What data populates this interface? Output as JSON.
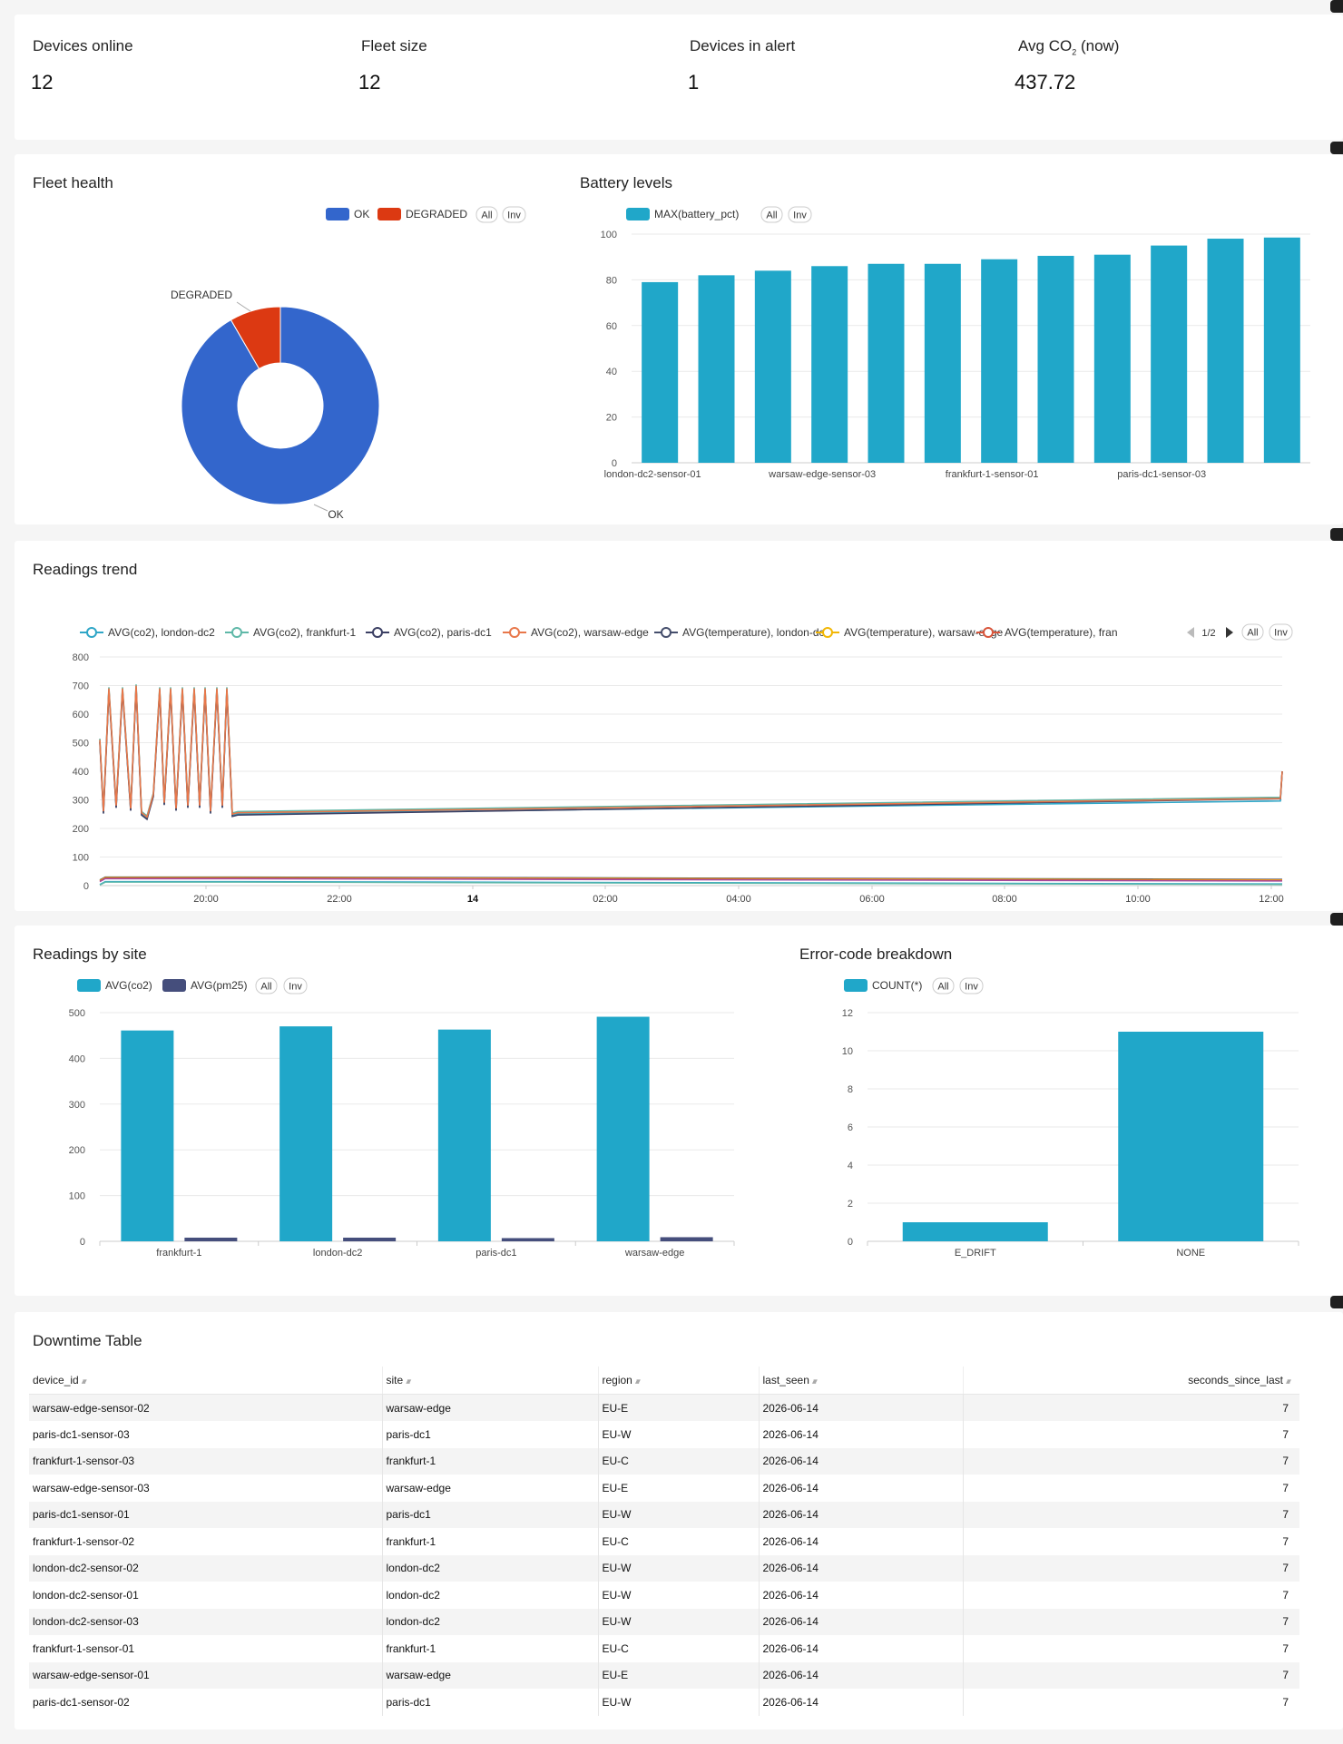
{
  "metrics": [
    {
      "label": "Devices online",
      "value": "12"
    },
    {
      "label": "Fleet size",
      "value": "12"
    },
    {
      "label": "Devices in alert",
      "value": "1"
    },
    {
      "label_main": "Avg CO",
      "label_sub": "2",
      "label_tail": " (now)",
      "value": "437.72"
    }
  ],
  "fleet_health": {
    "title": "Fleet health",
    "legend_all": "All",
    "legend_inv": "Inv"
  },
  "battery": {
    "title": "Battery levels",
    "legend_all": "All",
    "legend_inv": "Inv"
  },
  "trend": {
    "title": "Readings trend",
    "legend_page": "1/2",
    "legend_all": "All",
    "legend_inv": "Inv"
  },
  "by_site": {
    "title": "Readings by site",
    "legend_all": "All",
    "legend_inv": "Inv"
  },
  "errors": {
    "title": "Error-code breakdown",
    "legend_all": "All",
    "legend_inv": "Inv"
  },
  "colors": {
    "ok": "#3366cc",
    "degraded": "#dc3912",
    "bar": "#20a7c9",
    "bar_dark": "#454e7c"
  },
  "chart_data": [
    {
      "id": "fleet_health",
      "type": "pie",
      "labels": [
        "OK",
        "DEGRADED"
      ],
      "values": [
        11,
        1
      ],
      "legend": [
        "OK",
        "DEGRADED"
      ]
    },
    {
      "id": "battery",
      "type": "bar",
      "series": [
        {
          "name": "MAX(battery_pct)",
          "values": [
            79,
            82,
            84,
            86,
            87,
            87,
            89,
            90.5,
            91,
            95,
            98,
            98.5
          ]
        }
      ],
      "categories": [
        "london-dc2-sensor-01",
        "",
        "",
        "warsaw-edge-sensor-03",
        "",
        "",
        "frankfurt-1-sensor-01",
        "",
        "",
        "paris-dc1-sensor-03",
        "",
        ""
      ],
      "ylim": [
        0,
        100
      ],
      "yticks": [
        0,
        20,
        40,
        60,
        80,
        100
      ]
    },
    {
      "id": "trend",
      "type": "line",
      "legend": [
        "AVG(co2), london-dc2",
        "AVG(co2), frankfurt-1",
        "AVG(co2), paris-dc1",
        "AVG(co2), warsaw-edge",
        "AVG(temperature), london-dc2",
        "AVG(temperature), warsaw-edge",
        "AVG(temperature), fran"
      ],
      "legend_colors": [
        "#2fa6c7",
        "#5fb8a8",
        "#3b3f63",
        "#e8774a",
        "#454e6c",
        "#f2b705",
        "#d8553b"
      ],
      "xticks": [
        "20:00",
        "22:00",
        "14",
        "02:00",
        "04:00",
        "06:00",
        "08:00",
        "10:00",
        "12:00"
      ],
      "ylim": [
        0,
        800
      ],
      "yticks": [
        0,
        100,
        200,
        300,
        400,
        500,
        600,
        700,
        800
      ]
    },
    {
      "id": "by_site",
      "type": "bar",
      "categories": [
        "frankfurt-1",
        "london-dc2",
        "paris-dc1",
        "warsaw-edge"
      ],
      "series": [
        {
          "name": "AVG(co2)",
          "values": [
            461,
            470,
            463,
            491
          ]
        },
        {
          "name": "AVG(pm25)",
          "values": [
            8,
            8,
            7,
            9
          ]
        }
      ],
      "ylim": [
        0,
        500
      ],
      "yticks": [
        0,
        100,
        200,
        300,
        400,
        500
      ]
    },
    {
      "id": "errors",
      "type": "bar",
      "categories": [
        "E_DRIFT",
        "NONE"
      ],
      "series": [
        {
          "name": "COUNT(*)",
          "values": [
            1,
            11
          ]
        }
      ],
      "ylim": [
        0,
        12
      ],
      "yticks": [
        0,
        2,
        4,
        6,
        8,
        10,
        12
      ]
    }
  ],
  "downtime": {
    "title": "Downtime Table",
    "columns": [
      "device_id",
      "site",
      "region",
      "last_seen",
      "seconds_since_last"
    ],
    "rows": [
      [
        "warsaw-edge-sensor-02",
        "warsaw-edge",
        "EU-E",
        "2026-06-14",
        "7"
      ],
      [
        "paris-dc1-sensor-03",
        "paris-dc1",
        "EU-W",
        "2026-06-14",
        "7"
      ],
      [
        "frankfurt-1-sensor-03",
        "frankfurt-1",
        "EU-C",
        "2026-06-14",
        "7"
      ],
      [
        "warsaw-edge-sensor-03",
        "warsaw-edge",
        "EU-E",
        "2026-06-14",
        "7"
      ],
      [
        "paris-dc1-sensor-01",
        "paris-dc1",
        "EU-W",
        "2026-06-14",
        "7"
      ],
      [
        "frankfurt-1-sensor-02",
        "frankfurt-1",
        "EU-C",
        "2026-06-14",
        "7"
      ],
      [
        "london-dc2-sensor-02",
        "london-dc2",
        "EU-W",
        "2026-06-14",
        "7"
      ],
      [
        "london-dc2-sensor-01",
        "london-dc2",
        "EU-W",
        "2026-06-14",
        "7"
      ],
      [
        "london-dc2-sensor-03",
        "london-dc2",
        "EU-W",
        "2026-06-14",
        "7"
      ],
      [
        "frankfurt-1-sensor-01",
        "frankfurt-1",
        "EU-C",
        "2026-06-14",
        "7"
      ],
      [
        "warsaw-edge-sensor-01",
        "warsaw-edge",
        "EU-E",
        "2026-06-14",
        "7"
      ],
      [
        "paris-dc1-sensor-02",
        "paris-dc1",
        "EU-W",
        "2026-06-14",
        "7"
      ]
    ]
  }
}
